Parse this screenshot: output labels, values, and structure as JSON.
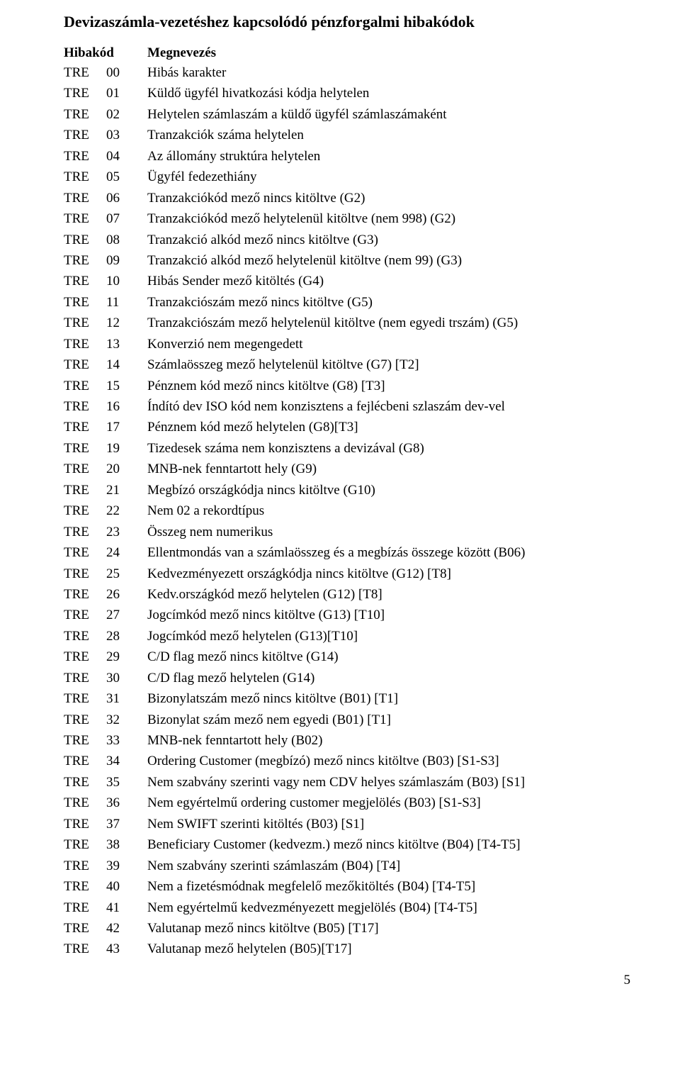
{
  "title": "Devizaszámla-vezetéshez kapcsolódó pénzforgalmi hibakódok",
  "headers": {
    "code": "Hibakód",
    "desc": "Megnevezés"
  },
  "page_number": "5",
  "rows": [
    {
      "prefix": "TRE",
      "num": "00",
      "desc": "Hibás karakter"
    },
    {
      "prefix": "TRE",
      "num": "01",
      "desc": "Küldő ügyfél  hivatkozási kódja helytelen"
    },
    {
      "prefix": "TRE",
      "num": "02",
      "desc": "Helytelen számlaszám a küldő ügyfél számlaszámaként"
    },
    {
      "prefix": "TRE",
      "num": "03",
      "desc": "Tranzakciók száma helytelen"
    },
    {
      "prefix": "TRE",
      "num": "04",
      "desc": "Az állomány struktúra helytelen"
    },
    {
      "prefix": "TRE",
      "num": "05",
      "desc": "Ügyfél fedezethiány"
    },
    {
      "prefix": "TRE",
      "num": "06",
      "desc": "Tranzakciókód mező nincs kitöltve (G2)"
    },
    {
      "prefix": "TRE",
      "num": "07",
      "desc": "Tranzakciókód mező helytelenül kitöltve (nem 998) (G2)"
    },
    {
      "prefix": "TRE",
      "num": "08",
      "desc": "Tranzakció alkód mező nincs kitöltve (G3)"
    },
    {
      "prefix": "TRE",
      "num": "09",
      "desc": "Tranzakció alkód mező helytelenül kitöltve (nem 99) (G3)"
    },
    {
      "prefix": "TRE",
      "num": "10",
      "desc": "Hibás Sender mező kitöltés (G4)"
    },
    {
      "prefix": "TRE",
      "num": "11",
      "desc": "Tranzakciószám mező nincs kitöltve (G5)"
    },
    {
      "prefix": "TRE",
      "num": "12",
      "desc": "Tranzakciószám mező helytelenül kitöltve (nem egyedi trszám) (G5)"
    },
    {
      "prefix": "TRE",
      "num": "13",
      "desc": "Konverzió nem megengedett"
    },
    {
      "prefix": "TRE",
      "num": "14",
      "desc": "Számlaösszeg mező helytelenül kitöltve (G7) [T2]"
    },
    {
      "prefix": "TRE",
      "num": "15",
      "desc": "Pénznem kód mező nincs kitöltve (G8) [T3]"
    },
    {
      "prefix": "TRE",
      "num": "16",
      "desc": "Índító dev ISO kód nem konzisztens a fejlécbeni szlaszám dev-vel"
    },
    {
      "prefix": "TRE",
      "num": "17",
      "desc": "Pénznem kód mező helytelen (G8)[T3]"
    },
    {
      "prefix": "TRE",
      "num": "19",
      "desc": "Tizedesek száma nem konzisztens a devizával (G8)"
    },
    {
      "prefix": "TRE",
      "num": "20",
      "desc": "MNB-nek fenntartott hely (G9)"
    },
    {
      "prefix": "TRE",
      "num": "21",
      "desc": "Megbízó országkódja nincs kitöltve (G10)"
    },
    {
      "prefix": "TRE",
      "num": "22",
      "desc": "Nem 02 a rekordtípus"
    },
    {
      "prefix": "TRE",
      "num": "23",
      "desc": "Összeg nem numerikus"
    },
    {
      "prefix": "TRE",
      "num": "24",
      "desc": "Ellentmondás van a számlaösszeg és a megbízás összege között (B06)"
    },
    {
      "prefix": "TRE",
      "num": "25",
      "desc": "Kedvezményezett országkódja nincs kitöltve (G12) [T8]"
    },
    {
      "prefix": "TRE",
      "num": "26",
      "desc": "Kedv.országkód mező  helytelen (G12) [T8]"
    },
    {
      "prefix": "TRE",
      "num": "27",
      "desc": "Jogcímkód mező nincs kitöltve (G13) [T10]"
    },
    {
      "prefix": "TRE",
      "num": "28",
      "desc": "Jogcímkód mező helytelen (G13)[T10]"
    },
    {
      "prefix": "TRE",
      "num": "29",
      "desc": "C/D flag mező nincs kitöltve (G14)"
    },
    {
      "prefix": "TRE",
      "num": "30",
      "desc": "C/D flag mező helytelen (G14)"
    },
    {
      "prefix": "TRE",
      "num": "31",
      "desc": "Bizonylatszám mező nincs kitöltve (B01) [T1]"
    },
    {
      "prefix": "TRE",
      "num": "32",
      "desc": "Bizonylat szám mező nem egyedi (B01) [T1]"
    },
    {
      "prefix": "TRE",
      "num": "33",
      "desc": "MNB-nek fenntartott hely (B02)"
    },
    {
      "prefix": "TRE",
      "num": "34",
      "desc": "Ordering Customer (megbízó) mező nincs kitöltve (B03) [S1-S3]"
    },
    {
      "prefix": "TRE",
      "num": "35",
      "desc": "Nem szabvány szerinti vagy nem CDV helyes számlaszám (B03) [S1]"
    },
    {
      "prefix": "TRE",
      "num": "36",
      "desc": "Nem egyértelmű ordering customer megjelölés (B03) [S1-S3]"
    },
    {
      "prefix": "TRE",
      "num": "37",
      "desc": "Nem SWIFT szerinti kitöltés (B03) [S1]"
    },
    {
      "prefix": "TRE",
      "num": "38",
      "desc": "Beneficiary Customer (kedvezm.) mező nincs kitöltve (B04) [T4-T5]"
    },
    {
      "prefix": "TRE",
      "num": "39",
      "desc": "Nem szabvány szerinti számlaszám (B04) [T4]"
    },
    {
      "prefix": "TRE",
      "num": "40",
      "desc": "Nem a fizetésmódnak megfelelő mezőkitöltés (B04) [T4-T5]"
    },
    {
      "prefix": "TRE",
      "num": "41",
      "desc": "Nem egyértelmű kedvezményezett megjelölés (B04) [T4-T5]"
    },
    {
      "prefix": "TRE",
      "num": "42",
      "desc": "Valutanap mező nincs kitöltve (B05) [T17]"
    },
    {
      "prefix": "TRE",
      "num": "43",
      "desc": "Valutanap mező helytelen (B05)[T17]"
    }
  ]
}
